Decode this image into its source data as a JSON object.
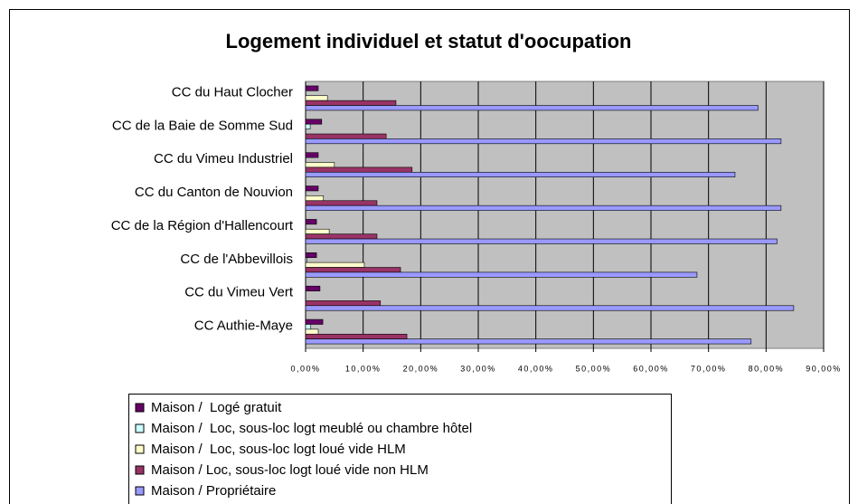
{
  "chart_data": {
    "type": "barh",
    "title": "Logement individuel et statut d'oocupation",
    "categories": [
      "CC du Haut Clocher",
      "CC de la Baie de Somme Sud",
      "CC du Vimeu Industriel",
      "CC du Canton de Nouvion",
      "CC de la Région d'Hallencourt",
      "CC de l'Abbevillois",
      "CC du Vimeu Vert",
      "CC Authie-Maye"
    ],
    "series": [
      {
        "name": "Maison /  Logé gratuit",
        "color": "#660066",
        "values": [
          2.2,
          2.8,
          2.2,
          2.2,
          1.9,
          1.9,
          2.5,
          3.0
        ]
      },
      {
        "name": "Maison /  Loc, sous-loc logt meublé ou chambre hôtel",
        "color": "#CCFFFF",
        "values": [
          0,
          0.8,
          0,
          0,
          0,
          0.2,
          0,
          0.9
        ]
      },
      {
        "name": "Maison /  Loc, sous-loc logt loué vide HLM",
        "color": "#FFFFCC",
        "values": [
          3.8,
          0,
          5.0,
          3.1,
          4.1,
          10.2,
          0,
          2.2
        ]
      },
      {
        "name": "Maison / Loc, sous-loc logt loué vide non HLM",
        "color": "#993366",
        "values": [
          15.7,
          14.0,
          18.5,
          12.4,
          12.4,
          16.5,
          13.0,
          17.6
        ]
      },
      {
        "name": "Maison / Propriétaire",
        "color": "#9999FF",
        "values": [
          78.6,
          82.6,
          74.6,
          82.6,
          81.9,
          68,
          84.8,
          77.4
        ]
      }
    ],
    "xlim": [
      0,
      90
    ],
    "xticks": [
      {
        "value": 0,
        "label": "0,00%"
      },
      {
        "value": 10,
        "label": "10,00%"
      },
      {
        "value": 20,
        "label": "20,00%"
      },
      {
        "value": 30,
        "label": "30,00%"
      },
      {
        "value": 40,
        "label": "40,00%"
      },
      {
        "value": 50,
        "label": "50,00%"
      },
      {
        "value": 60,
        "label": "60,00%"
      },
      {
        "value": 70,
        "label": "70,00%"
      },
      {
        "value": 80,
        "label": "80,00%"
      },
      {
        "value": 90,
        "label": "90,00%"
      }
    ],
    "grid": true,
    "plot_background": "#C0C0C0"
  }
}
